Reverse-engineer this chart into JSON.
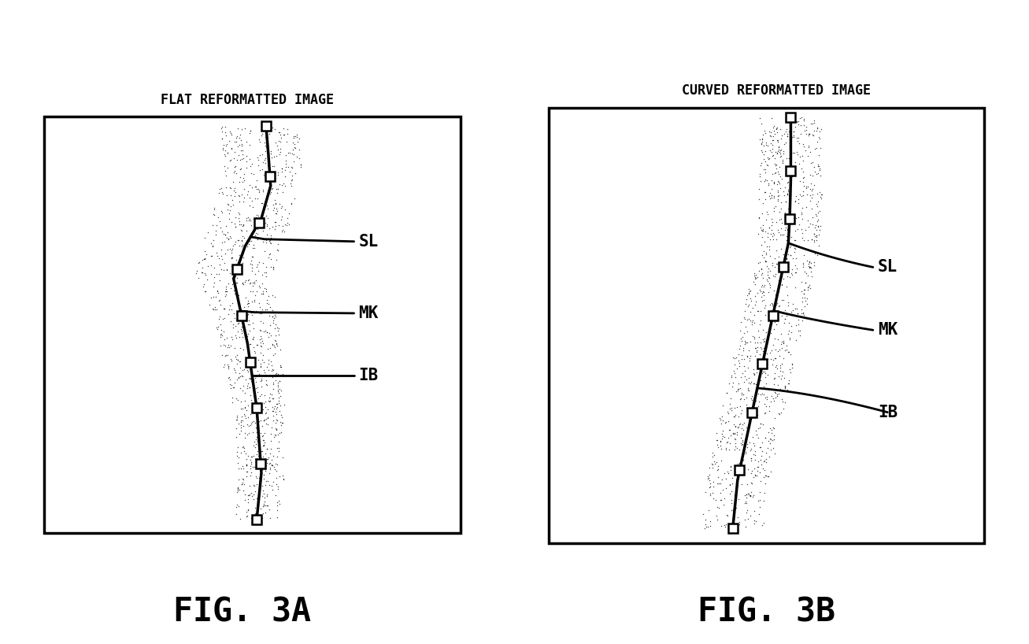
{
  "bg_color": "#ffffff",
  "fig_title_A": "FLAT REFORMATTED IMAGE",
  "fig_title_B": "CURVED REFORMATTED IMAGE",
  "caption_A": "FIG. 3A",
  "caption_B": "FIG. 3B",
  "label_SL": "SL",
  "label_MK": "MK",
  "label_IB": "IB",
  "vessel_A_x": [
    5.3,
    5.35,
    5.4,
    5.2,
    4.85,
    4.6,
    4.75,
    4.9,
    5.0,
    5.1,
    5.15,
    5.2,
    5.1
  ],
  "vessel_A_y": [
    9.1,
    8.5,
    7.8,
    7.1,
    6.5,
    5.8,
    5.1,
    4.4,
    3.7,
    3.0,
    2.3,
    1.6,
    0.6
  ],
  "vessel_B_x": [
    5.5,
    5.5,
    5.5,
    5.48,
    5.45,
    5.3,
    5.15,
    5.0,
    4.85,
    4.7,
    4.55,
    4.4,
    4.3
  ],
  "vessel_B_y": [
    9.1,
    8.5,
    7.8,
    7.1,
    6.5,
    5.8,
    5.1,
    4.4,
    3.7,
    3.0,
    2.3,
    1.6,
    0.6
  ],
  "marker_y": [
    9.1,
    8.0,
    7.0,
    6.0,
    5.0,
    4.0,
    3.0,
    1.8,
    0.6
  ]
}
